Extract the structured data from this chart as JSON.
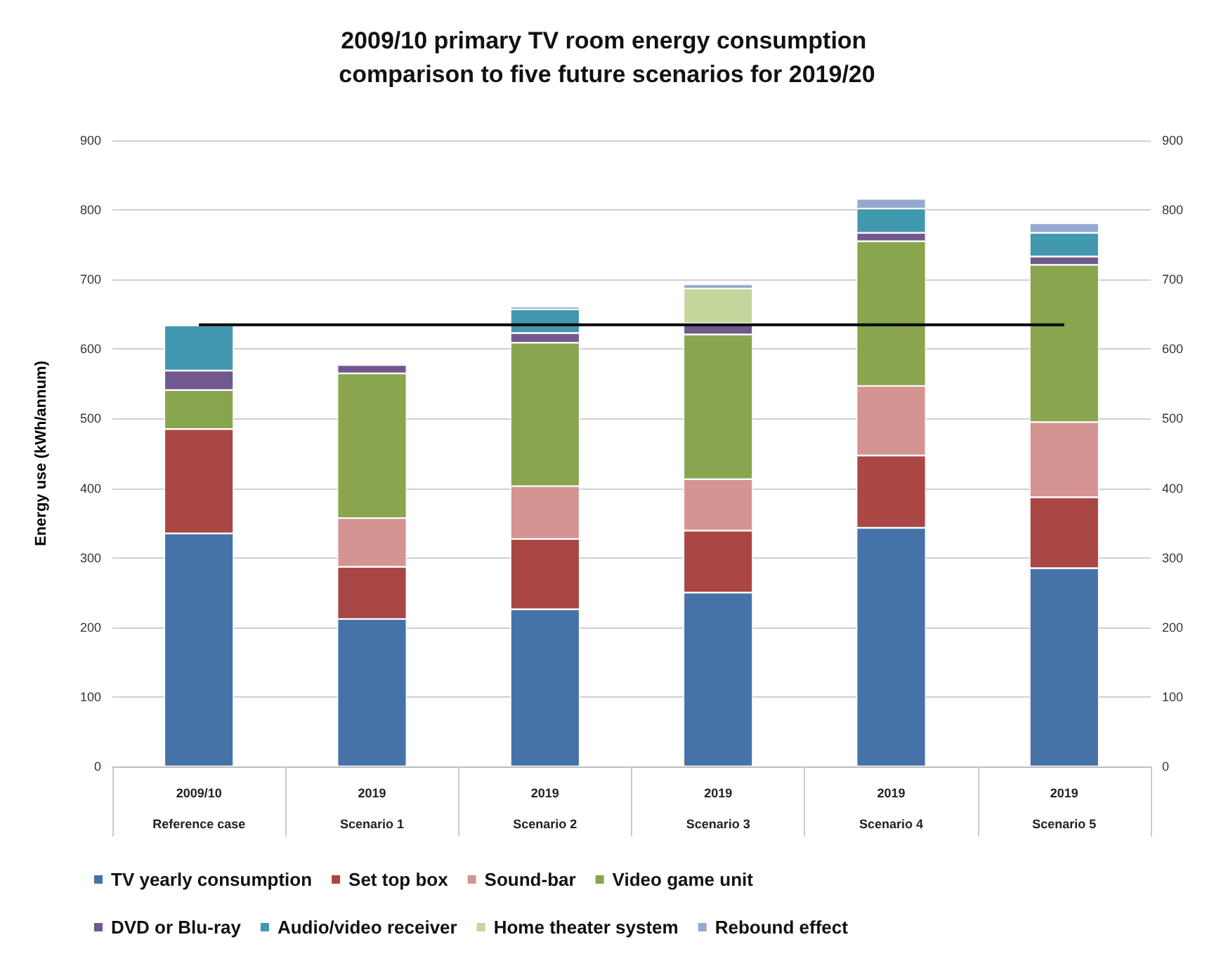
{
  "chart_data": {
    "type": "bar",
    "title": "2009/10 primary TV room energy consumption comparison to five future scenarios for 2019/20",
    "ylabel": "Energy use (kWh/annum)",
    "categories": [
      "2009/10\nReference case",
      "2019\nScenario 1",
      "2019\nScenario 2",
      "2019\nScenario 3",
      "2019\nScenario 4",
      "2019\nScenario 5"
    ],
    "stacked": true,
    "series": [
      {
        "name": "TV yearly consumption",
        "color": "#4572a7",
        "values": [
          335,
          212,
          226,
          250,
          343,
          285
        ]
      },
      {
        "name": "Set top box",
        "color": "#aa4643",
        "values": [
          150,
          75,
          101,
          89,
          104,
          102
        ]
      },
      {
        "name": "Sound-bar",
        "color": "#d49592",
        "values": [
          null,
          70,
          76,
          74,
          100,
          108
        ]
      },
      {
        "name": "Video game unit",
        "color": "#89a54e",
        "values": [
          56,
          208,
          206,
          208,
          208,
          226
        ]
      },
      {
        "name": "DVD or Blu-ray",
        "color": "#71588f",
        "values": [
          28,
          12,
          14,
          16,
          12,
          12
        ]
      },
      {
        "name": "Audio/video receiver",
        "color": "#4198af",
        "values": [
          65,
          null,
          34,
          null,
          35,
          34
        ]
      },
      {
        "name": "Home theater system",
        "color": "#c3d69b",
        "values": [
          null,
          null,
          null,
          50,
          null,
          null
        ]
      },
      {
        "name": "Rebound effect",
        "color": "#93a9cf",
        "values": [
          null,
          null,
          4,
          6,
          14,
          14
        ]
      },
      {
        "type": "line",
        "color": "#000000",
        "marker": "none",
        "values": [
          635,
          635,
          635,
          635,
          635,
          635
        ]
      }
    ],
    "ylim": [
      0,
      900
    ],
    "yticks": [
      0,
      100,
      200,
      300,
      400,
      500,
      600,
      700,
      800,
      900
    ],
    "y2lim": [
      0,
      900
    ],
    "y2ticks": [
      0,
      100,
      200,
      300,
      400,
      500,
      600,
      700,
      800,
      900
    ],
    "grid": "y",
    "legend": "bottom"
  }
}
